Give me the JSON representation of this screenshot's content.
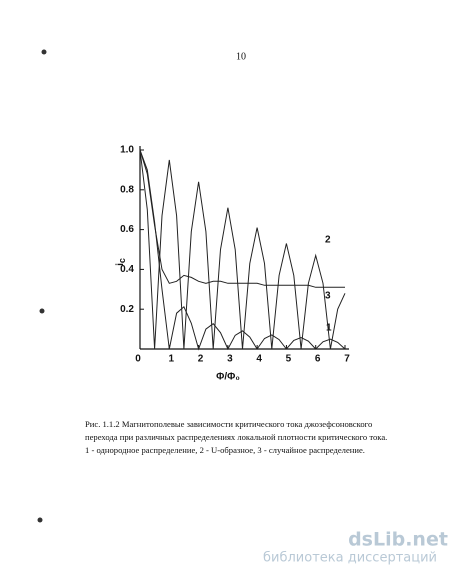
{
  "page_number": "10",
  "chart_data": {
    "type": "line",
    "ylabel": "i",
    "ylabel_sub": "c",
    "xlabel": "Φ/Φ₀",
    "x": [
      0,
      0.25,
      0.5,
      0.75,
      1,
      1.25,
      1.5,
      1.75,
      2,
      2.25,
      2.5,
      2.75,
      3,
      3.25,
      3.5,
      3.75,
      4,
      4.25,
      4.5,
      4.75,
      5,
      5.25,
      5.5,
      5.75,
      6,
      6.25,
      6.5,
      6.75,
      7
    ],
    "series": [
      {
        "name": "1",
        "color": "#222222",
        "values": [
          1,
          0.9,
          0.637,
          0.3,
          0,
          0.18,
          0.212,
          0.129,
          0,
          0.1,
          0.127,
          0.082,
          0,
          0.069,
          0.091,
          0.06,
          0,
          0.053,
          0.071,
          0.047,
          0,
          0.043,
          0.058,
          0.039,
          0,
          0.036,
          0.049,
          0.033,
          0
        ]
      },
      {
        "name": "2",
        "color": "#222222",
        "values": [
          1,
          0.7,
          0,
          0.67,
          0.95,
          0.67,
          0,
          0.59,
          0.84,
          0.59,
          0,
          0.5,
          0.71,
          0.5,
          0,
          0.43,
          0.61,
          0.43,
          0,
          0.37,
          0.53,
          0.37,
          0,
          0.33,
          0.47,
          0.33,
          0,
          0.2,
          0.28
        ]
      },
      {
        "name": "3",
        "color": "#222222",
        "values": [
          1,
          0.88,
          0.62,
          0.4,
          0.33,
          0.34,
          0.37,
          0.36,
          0.34,
          0.33,
          0.34,
          0.34,
          0.33,
          0.33,
          0.33,
          0.33,
          0.33,
          0.32,
          0.32,
          0.32,
          0.32,
          0.32,
          0.32,
          0.32,
          0.31,
          0.31,
          0.31,
          0.31,
          0.31
        ]
      }
    ],
    "xlim": [
      0,
      7
    ],
    "xticks": [
      0,
      1,
      2,
      3,
      4,
      5,
      6,
      7
    ],
    "ylim": [
      0,
      1
    ],
    "yticks": [
      0.2,
      0.4,
      0.6,
      0.8,
      {
        "value": 1,
        "label": "1.0"
      }
    ],
    "grid": false
  },
  "caption": [
    "Рис. 1.1.2 Магнитополевые зависимости критического тока джозефсоновского",
    "перехода при различных распределениях локальной плотности критического тока.",
    "1 - однородное распределение, 2 - U-образное, 3 - случайное распределение."
  ],
  "watermark": {
    "site": "dsLib.net",
    "tagline": "библиотека диссертаций"
  }
}
